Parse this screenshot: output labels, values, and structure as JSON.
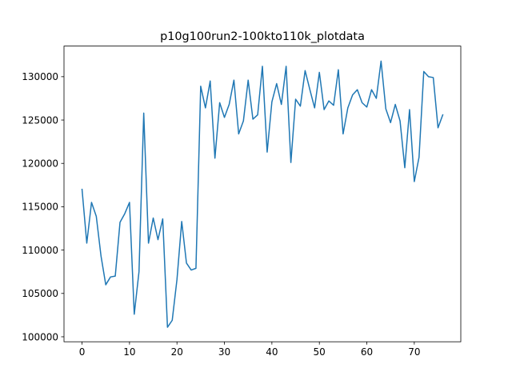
{
  "chart_data": {
    "type": "line",
    "title": "p10g100run2-100kto110k_plotdata",
    "xlabel": "",
    "ylabel": "",
    "xlim": [
      -3.8,
      79.8
    ],
    "ylim": [
      99425,
      133530
    ],
    "x_ticks": [
      0,
      10,
      20,
      30,
      40,
      50,
      60,
      70
    ],
    "y_ticks": [
      100000,
      105000,
      110000,
      115000,
      120000,
      125000,
      130000
    ],
    "grid": false,
    "legend": "none",
    "series": [
      {
        "color": "#1f77b4",
        "x": [
          0,
          1,
          2,
          3,
          4,
          5,
          6,
          7,
          8,
          9,
          10,
          11,
          12,
          13,
          14,
          15,
          16,
          17,
          18,
          19,
          20,
          21,
          22,
          23,
          24,
          25,
          26,
          27,
          28,
          29,
          30,
          31,
          32,
          33,
          34,
          35,
          36,
          37,
          38,
          39,
          40,
          41,
          42,
          43,
          44,
          45,
          46,
          47,
          48,
          49,
          50,
          51,
          52,
          53,
          54,
          55,
          56,
          57,
          58,
          59,
          60,
          61,
          62,
          63,
          64,
          65,
          66,
          67,
          68,
          69,
          70,
          71,
          72,
          73,
          74,
          75,
          76
        ],
        "values": [
          117000,
          110800,
          115500,
          113900,
          109300,
          106000,
          106900,
          107000,
          113200,
          114200,
          115500,
          102600,
          107500,
          125800,
          110800,
          113700,
          111200,
          113600,
          101100,
          101900,
          106600,
          113300,
          108500,
          107700,
          107900,
          128900,
          126400,
          129500,
          120600,
          127000,
          125300,
          126800,
          129600,
          123400,
          124900,
          129600,
          125100,
          125600,
          131200,
          121300,
          127100,
          129200,
          126800,
          131200,
          120100,
          127400,
          126600,
          130700,
          128500,
          126400,
          130500,
          126200,
          127200,
          126700,
          130800,
          123400,
          126400,
          127900,
          128500,
          127000,
          126500,
          128500,
          127500,
          131800,
          126300,
          124700,
          126800,
          124900,
          119500,
          126200,
          117900,
          120700,
          130600,
          130000,
          129900,
          124100,
          125600
        ]
      }
    ]
  }
}
